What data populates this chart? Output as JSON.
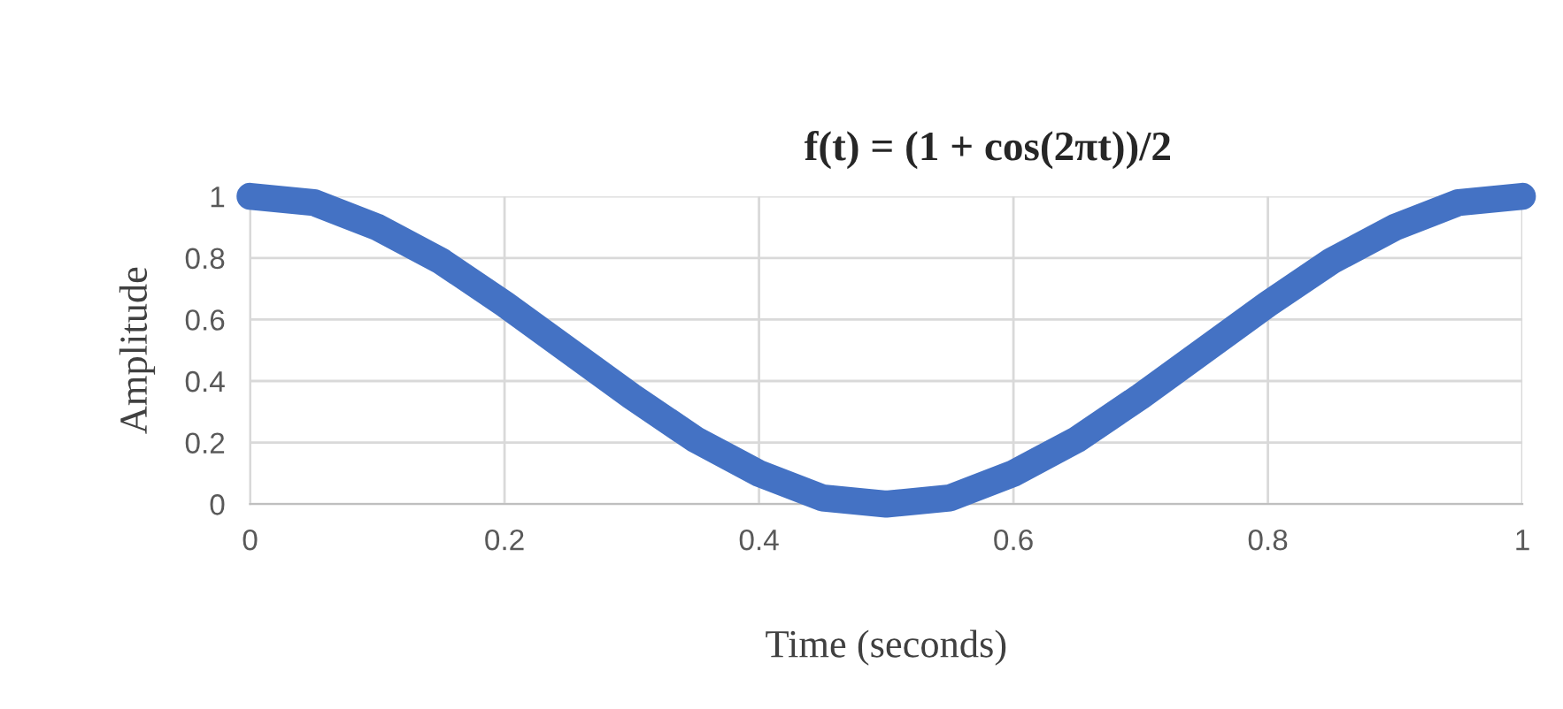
{
  "chart_data": {
    "type": "line",
    "title": "f(t) = (1 + cos(2πt))/2",
    "xlabel": "Time (seconds)",
    "ylabel": "Amplitude",
    "series": [
      {
        "color": "#4472c4",
        "x": [
          0,
          0.05,
          0.1,
          0.15,
          0.2,
          0.25,
          0.3,
          0.35,
          0.4,
          0.45,
          0.5,
          0.55,
          0.6,
          0.65,
          0.7,
          0.75,
          0.8,
          0.85,
          0.9,
          0.95,
          1
        ],
        "values": [
          1,
          0.98,
          0.9,
          0.79,
          0.65,
          0.5,
          0.35,
          0.21,
          0.1,
          0.02,
          0,
          0.02,
          0.1,
          0.21,
          0.35,
          0.5,
          0.65,
          0.79,
          0.9,
          0.98,
          1
        ]
      }
    ],
    "xlim": [
      0,
      1
    ],
    "ylim": [
      0,
      1
    ],
    "xticks": [
      0,
      0.2,
      0.4,
      0.6,
      0.8,
      1
    ],
    "yticks": [
      0,
      0.2,
      0.4,
      0.6,
      0.8,
      1
    ],
    "grid": true,
    "line_style": "solid"
  }
}
